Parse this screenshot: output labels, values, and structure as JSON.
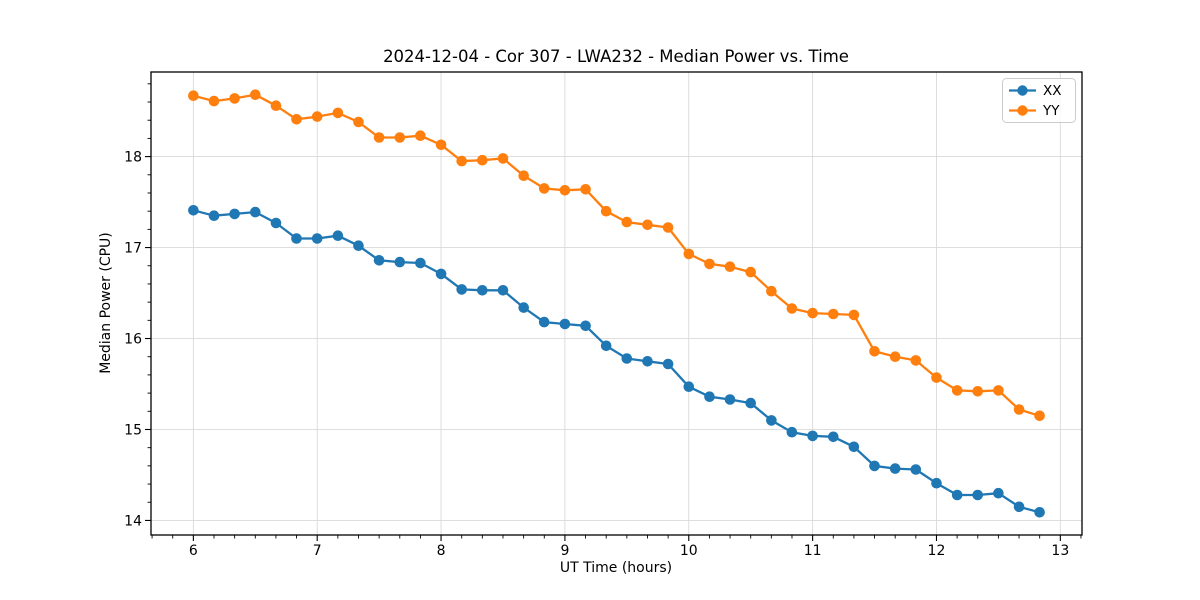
{
  "chart_data": {
    "type": "line",
    "title": "2024-12-04 - Cor 307 - LWA232 - Median Power vs. Time",
    "xlabel": "UT Time (hours)",
    "ylabel": "Median Power (CPU)",
    "xlim": [
      5.658,
      13.175
    ],
    "ylim": [
      13.84,
      18.93
    ],
    "xticks": [
      6,
      7,
      8,
      9,
      10,
      11,
      12,
      13
    ],
    "yticks": [
      14,
      15,
      16,
      17,
      18
    ],
    "x_minor_per_major": 6,
    "y_minor_per_major": 5,
    "grid": true,
    "grid_color": "#d9d9d9",
    "legend_position": "upper right",
    "x": [
      6.0,
      6.167,
      6.333,
      6.5,
      6.667,
      6.833,
      7.0,
      7.167,
      7.333,
      7.5,
      7.667,
      7.833,
      8.0,
      8.167,
      8.333,
      8.5,
      8.667,
      8.833,
      9.0,
      9.167,
      9.333,
      9.5,
      9.667,
      9.833,
      10.0,
      10.167,
      10.333,
      10.5,
      10.667,
      10.833,
      11.0,
      11.167,
      11.333,
      11.5,
      11.667,
      11.833,
      12.0,
      12.167,
      12.333,
      12.5,
      12.667,
      12.833
    ],
    "series": [
      {
        "name": "XX",
        "color": "#1f77b4",
        "values": [
          17.41,
          17.35,
          17.37,
          17.39,
          17.27,
          17.1,
          17.1,
          17.13,
          17.02,
          16.86,
          16.84,
          16.83,
          16.71,
          16.54,
          16.53,
          16.53,
          16.34,
          16.18,
          16.16,
          16.14,
          15.92,
          15.78,
          15.75,
          15.72,
          15.47,
          15.36,
          15.33,
          15.29,
          15.1,
          14.97,
          14.93,
          14.92,
          14.81,
          14.6,
          14.57,
          14.56,
          14.41,
          14.28,
          14.28,
          14.3,
          14.15,
          14.09
        ]
      },
      {
        "name": "YY",
        "color": "#ff7f0e",
        "values": [
          18.67,
          18.61,
          18.64,
          18.68,
          18.56,
          18.41,
          18.44,
          18.48,
          18.38,
          18.21,
          18.21,
          18.23,
          18.13,
          17.95,
          17.96,
          17.98,
          17.79,
          17.65,
          17.63,
          17.64,
          17.4,
          17.28,
          17.25,
          17.22,
          16.93,
          16.82,
          16.79,
          16.73,
          16.52,
          16.33,
          16.28,
          16.27,
          16.26,
          15.86,
          15.8,
          15.76,
          15.57,
          15.43,
          15.42,
          15.43,
          15.22,
          15.15
        ]
      }
    ]
  }
}
